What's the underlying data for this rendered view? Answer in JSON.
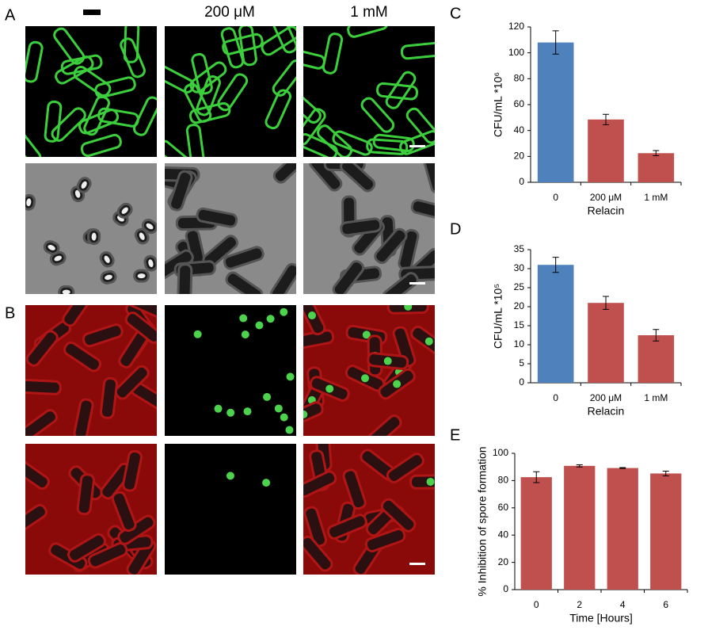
{
  "panels": {
    "labels": [
      "A",
      "B"
    ],
    "column_headers": [
      "200 μM",
      "1 mM"
    ]
  },
  "chart_data": [
    {
      "type": "bar",
      "panel_label": "C",
      "categories": [
        "0",
        "200 μM",
        "1 mM"
      ],
      "values": [
        108,
        48.5,
        22.5
      ],
      "errors": [
        9,
        4,
        2
      ],
      "colors": [
        "#4f81bd",
        "#c0504d",
        "#c0504d"
      ],
      "ylim": [
        0,
        120
      ],
      "yticks": [
        0,
        20,
        40,
        60,
        80,
        100,
        120
      ],
      "ylabel": "CFU/mL *10⁶",
      "xlabel": "Relacin"
    },
    {
      "type": "bar",
      "panel_label": "D",
      "categories": [
        "0",
        "200 μM",
        "1 mM"
      ],
      "values": [
        31,
        21,
        12.5
      ],
      "errors": [
        2,
        1.7,
        1.5
      ],
      "colors": [
        "#4f81bd",
        "#c0504d",
        "#c0504d"
      ],
      "ylim": [
        0,
        35
      ],
      "yticks": [
        0,
        5,
        10,
        15,
        20,
        25,
        30,
        35
      ],
      "ylabel": "CFU/mL *10⁵",
      "xlabel": "Relacin"
    },
    {
      "type": "bar",
      "panel_label": "E",
      "categories": [
        "0",
        "2",
        "4",
        "6"
      ],
      "values": [
        82.5,
        90.8,
        89.2,
        85.2
      ],
      "errors": [
        4,
        0.8,
        0.3,
        1.7
      ],
      "colors": [
        "#c0504d",
        "#c0504d",
        "#c0504d",
        "#c0504d"
      ],
      "ylim": [
        0,
        100
      ],
      "yticks": [
        0,
        20,
        40,
        60,
        80,
        100
      ],
      "ylabel": "% Inhibition of spore formation",
      "xlabel": "Time [Hours]"
    }
  ]
}
